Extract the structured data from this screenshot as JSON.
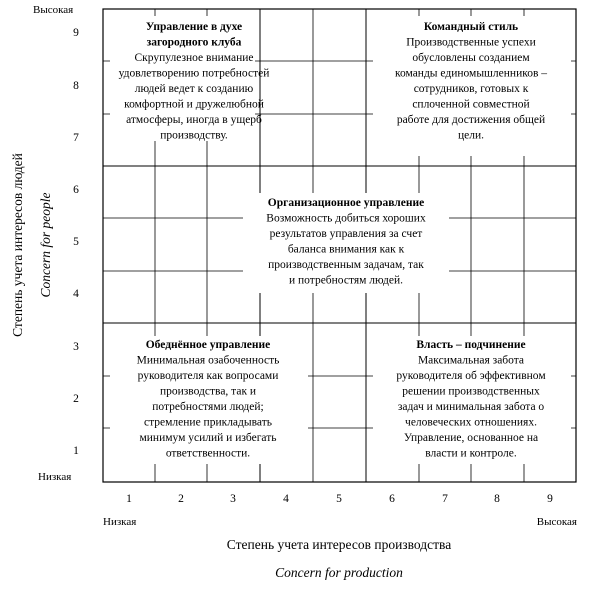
{
  "grid": {
    "y_labels": [
      "1",
      "2",
      "3",
      "4",
      "5",
      "6",
      "7",
      "8",
      "9"
    ],
    "x_labels": [
      "1",
      "2",
      "3",
      "4",
      "5",
      "6",
      "7",
      "8",
      "9"
    ],
    "y_high": "Высокая",
    "y_low": "Низкая",
    "x_low": "Низкая",
    "x_high": "Высокая",
    "x_axis_title": "Степень учета интересов производства",
    "x_axis_title_en": "Concern for production",
    "y_axis_title": "Степень учета интересов людей",
    "y_axis_title_en": "Concern for people"
  },
  "styles": [
    {
      "title": "Управление в духе загородного клуба",
      "title_lines": [
        "Управление в духе",
        "загородного клуба"
      ],
      "description_lines": [
        "Скрупулезное внимание",
        "удовлетворению потребностей",
        "людей ведет к созданию",
        "комфортной и дружелюбной",
        "атмосферы, иногда в ущерб",
        "производству."
      ]
    },
    {
      "title": "Командный стиль",
      "title_lines": [
        "Командный стиль"
      ],
      "description_lines": [
        "Производственные успехи",
        "обусловлены созданием",
        "команды единомышленников –",
        "сотрудников, готовых к",
        "сплоченной совместной",
        "работе для достижения общей",
        "цели."
      ]
    },
    {
      "title": "Организационное управление",
      "title_lines": [
        "Организационное управление"
      ],
      "description_lines": [
        "Возможность добиться хороших",
        "результатов управления за счет",
        "баланса внимания как к",
        "производственным задачам, так",
        "и потребностям людей."
      ]
    },
    {
      "title": "Обеднённое управление",
      "title_lines": [
        "Обеднённое управление"
      ],
      "description_lines": [
        "Минимальная озабоченность",
        "руководителя как вопросами",
        "производства, так и",
        "потребностями людей;",
        "стремление прикладывать",
        "минимум усилий и избегать",
        "ответственности."
      ]
    },
    {
      "title": "Власть – подчинение",
      "title_lines": [
        "Власть – подчинение"
      ],
      "description_lines": [
        "Максимальная забота",
        "руководителя об эффективном",
        "решении производственных",
        "задач и минимальная забота о",
        "человеческих отношениях.",
        "Управление, основанное на",
        "власти и контроле."
      ]
    }
  ]
}
